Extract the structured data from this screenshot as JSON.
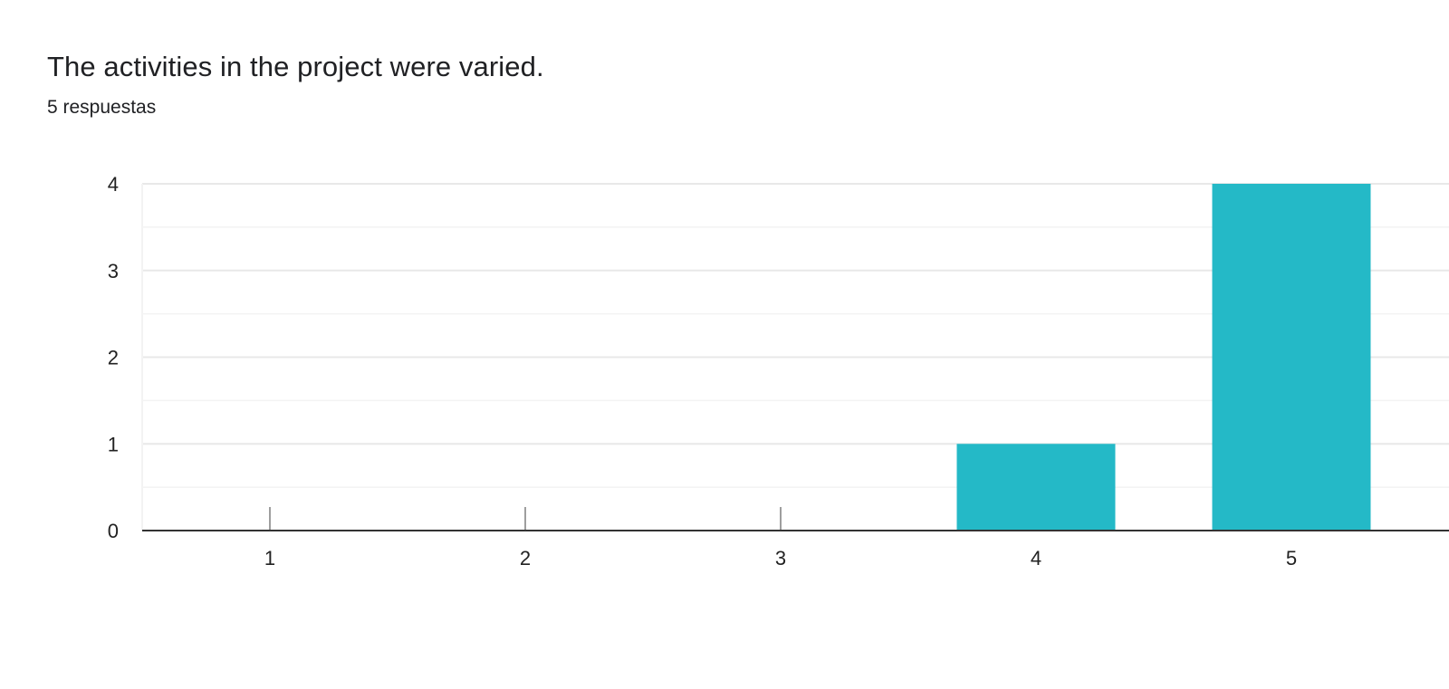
{
  "question": {
    "title": "The activities in the project were varied.",
    "response_count": "5 respuestas"
  },
  "colors": {
    "bar": "#24b9c7",
    "major_grid": "#e8e8e8",
    "minor_grid": "#f3f3f3",
    "axis": "#333333",
    "zero_tick": "#9e9e9e"
  },
  "chart_data": {
    "type": "bar",
    "categories": [
      "1",
      "2",
      "3",
      "4",
      "5"
    ],
    "values": [
      0,
      0,
      0,
      1,
      4
    ],
    "title": "The activities in the project were varied.",
    "xlabel": "",
    "ylabel": "",
    "ylim": [
      0,
      4
    ],
    "yticks": [
      0,
      1,
      2,
      3,
      4
    ],
    "grid": true,
    "legend": "none"
  }
}
